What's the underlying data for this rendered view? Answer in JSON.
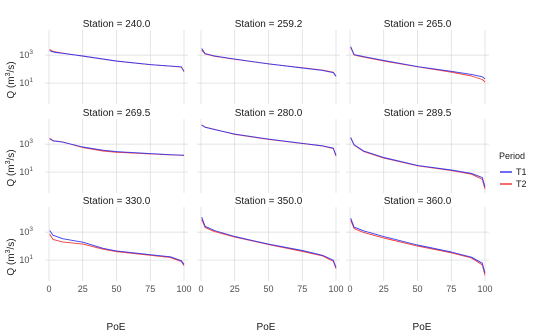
{
  "chart_data": {
    "type": "line",
    "facet_label_prefix": "Station = ",
    "xlabel": "PoE",
    "ylabel": "Q (m³/s)",
    "ylabel_main": "Q (m",
    "ylabel_sup": "3",
    "ylabel_tail": "/s)",
    "xlim": [
      0,
      100
    ],
    "x_ticks": [
      "0",
      "25",
      "50",
      "75",
      "100"
    ],
    "y_scale": "log10",
    "y_ticks": [
      {
        "exp": "3",
        "value": 1000
      },
      {
        "exp": "1",
        "value": 10
      }
    ],
    "y_tick_base": "10",
    "ylim_log10": [
      -0.5,
      4.8
    ],
    "grid": true,
    "legend": {
      "title": "Period",
      "position": "right",
      "items": [
        {
          "label": "T1",
          "color": "#3b3bf0"
        },
        {
          "label": "T2",
          "color": "#f03b3b"
        }
      ]
    },
    "facets": [
      {
        "station": "240.0",
        "series": [
          {
            "name": "T1",
            "points": [
              [
                0.5,
                2100
              ],
              [
                2,
                1800
              ],
              [
                5,
                1550
              ],
              [
                10,
                1350
              ],
              [
                25,
                860
              ],
              [
                50,
                380
              ],
              [
                75,
                210
              ],
              [
                90,
                165
              ],
              [
                98,
                145
              ],
              [
                100,
                70
              ]
            ]
          },
          {
            "name": "T2",
            "points": [
              [
                0.5,
                2600
              ],
              [
                2,
                2000
              ],
              [
                5,
                1700
              ],
              [
                10,
                1400
              ],
              [
                25,
                840
              ],
              [
                50,
                370
              ],
              [
                75,
                205
              ],
              [
                90,
                160
              ],
              [
                98,
                140
              ],
              [
                100,
                65
              ]
            ]
          }
        ]
      },
      {
        "station": "259.2",
        "series": [
          {
            "name": "T1",
            "points": [
              [
                0.5,
                3000
              ],
              [
                3,
                1300
              ],
              [
                10,
                880
              ],
              [
                25,
                520
              ],
              [
                50,
                240
              ],
              [
                75,
                120
              ],
              [
                90,
                80
              ],
              [
                98,
                55
              ],
              [
                100,
                30
              ]
            ]
          },
          {
            "name": "T2",
            "points": [
              [
                0.5,
                2300
              ],
              [
                3,
                1200
              ],
              [
                10,
                830
              ],
              [
                25,
                500
              ],
              [
                50,
                235
              ],
              [
                75,
                125
              ],
              [
                90,
                85
              ],
              [
                98,
                60
              ],
              [
                100,
                32
              ]
            ]
          }
        ]
      },
      {
        "station": "265.0",
        "series": [
          {
            "name": "T1",
            "points": [
              [
                0.5,
                4000
              ],
              [
                3,
                1100
              ],
              [
                10,
                780
              ],
              [
                25,
                420
              ],
              [
                50,
                150
              ],
              [
                75,
                70
              ],
              [
                90,
                42
              ],
              [
                98,
                28
              ],
              [
                100,
                20
              ]
            ]
          },
          {
            "name": "T2",
            "points": [
              [
                0.5,
                3600
              ],
              [
                3,
                1000
              ],
              [
                10,
                720
              ],
              [
                25,
                380
              ],
              [
                50,
                145
              ],
              [
                75,
                60
              ],
              [
                90,
                32
              ],
              [
                98,
                18
              ],
              [
                100,
                12
              ]
            ]
          }
        ]
      },
      {
        "station": "269.5",
        "series": [
          {
            "name": "T1",
            "points": [
              [
                0.5,
                2400
              ],
              [
                3,
                1700
              ],
              [
                10,
                1400
              ],
              [
                25,
                620
              ],
              [
                40,
                370
              ],
              [
                50,
                290
              ],
              [
                75,
                210
              ],
              [
                90,
                175
              ],
              [
                100,
                160
              ]
            ]
          },
          {
            "name": "T2",
            "points": [
              [
                0.5,
                2600
              ],
              [
                3,
                1800
              ],
              [
                10,
                1450
              ],
              [
                25,
                560
              ],
              [
                40,
                320
              ],
              [
                50,
                260
              ],
              [
                75,
                200
              ],
              [
                90,
                170
              ],
              [
                100,
                155
              ]
            ]
          }
        ]
      },
      {
        "station": "280.0",
        "series": [
          {
            "name": "T1",
            "points": [
              [
                0.5,
                23000
              ],
              [
                3,
                16000
              ],
              [
                10,
                11000
              ],
              [
                25,
                5200
              ],
              [
                50,
                2300
              ],
              [
                75,
                1150
              ],
              [
                90,
                760
              ],
              [
                98,
                520
              ],
              [
                100,
                160
              ]
            ]
          },
          {
            "name": "T2",
            "points": [
              [
                0.5,
                24000
              ],
              [
                3,
                16500
              ],
              [
                10,
                11500
              ],
              [
                25,
                5000
              ],
              [
                50,
                2200
              ],
              [
                75,
                1100
              ],
              [
                90,
                730
              ],
              [
                98,
                480
              ],
              [
                100,
                140
              ]
            ]
          }
        ]
      },
      {
        "station": "289.5",
        "series": [
          {
            "name": "T1",
            "points": [
              [
                0.5,
                3000
              ],
              [
                3,
                900
              ],
              [
                10,
                330
              ],
              [
                25,
                110
              ],
              [
                50,
                30
              ],
              [
                75,
                14
              ],
              [
                90,
                8
              ],
              [
                98,
                4
              ],
              [
                100,
                0.9
              ]
            ]
          },
          {
            "name": "T2",
            "points": [
              [
                0.5,
                2800
              ],
              [
                3,
                850
              ],
              [
                10,
                300
              ],
              [
                25,
                100
              ],
              [
                50,
                28
              ],
              [
                75,
                13
              ],
              [
                90,
                7
              ],
              [
                98,
                3
              ],
              [
                100,
                0.6
              ]
            ]
          }
        ]
      },
      {
        "station": "330.0",
        "series": [
          {
            "name": "T1",
            "points": [
              [
                0.5,
                1300
              ],
              [
                3,
                600
              ],
              [
                10,
                340
              ],
              [
                25,
                190
              ],
              [
                40,
                70
              ],
              [
                50,
                45
              ],
              [
                75,
                24
              ],
              [
                90,
                17
              ],
              [
                98,
                9
              ],
              [
                100,
                5
              ]
            ]
          },
          {
            "name": "T2",
            "points": [
              [
                0.5,
                700
              ],
              [
                3,
                300
              ],
              [
                10,
                200
              ],
              [
                25,
                140
              ],
              [
                40,
                60
              ],
              [
                50,
                40
              ],
              [
                75,
                22
              ],
              [
                90,
                15
              ],
              [
                98,
                8
              ],
              [
                100,
                4
              ]
            ]
          }
        ]
      },
      {
        "station": "350.0",
        "series": [
          {
            "name": "T1",
            "points": [
              [
                0.5,
                12000
              ],
              [
                3,
                2600
              ],
              [
                10,
                1300
              ],
              [
                25,
                490
              ],
              [
                50,
                140
              ],
              [
                75,
                48
              ],
              [
                90,
                22
              ],
              [
                98,
                10
              ],
              [
                100,
                3
              ]
            ]
          },
          {
            "name": "T2",
            "points": [
              [
                0.5,
                8000
              ],
              [
                3,
                2100
              ],
              [
                10,
                1100
              ],
              [
                25,
                440
              ],
              [
                50,
                130
              ],
              [
                75,
                42
              ],
              [
                90,
                20
              ],
              [
                98,
                8
              ],
              [
                100,
                2.5
              ]
            ]
          }
        ]
      },
      {
        "station": "360.0",
        "series": [
          {
            "name": "T1",
            "points": [
              [
                0.5,
                10000
              ],
              [
                3,
                2300
              ],
              [
                10,
                1250
              ],
              [
                25,
                480
              ],
              [
                50,
                120
              ],
              [
                75,
                38
              ],
              [
                90,
                16
              ],
              [
                98,
                6
              ],
              [
                100,
                1.2
              ]
            ]
          },
          {
            "name": "T2",
            "points": [
              [
                0.5,
                7000
              ],
              [
                3,
                1800
              ],
              [
                10,
                950
              ],
              [
                25,
                380
              ],
              [
                50,
                100
              ],
              [
                75,
                33
              ],
              [
                90,
                14
              ],
              [
                98,
                4.5
              ],
              [
                100,
                0.8
              ]
            ]
          }
        ]
      }
    ]
  }
}
